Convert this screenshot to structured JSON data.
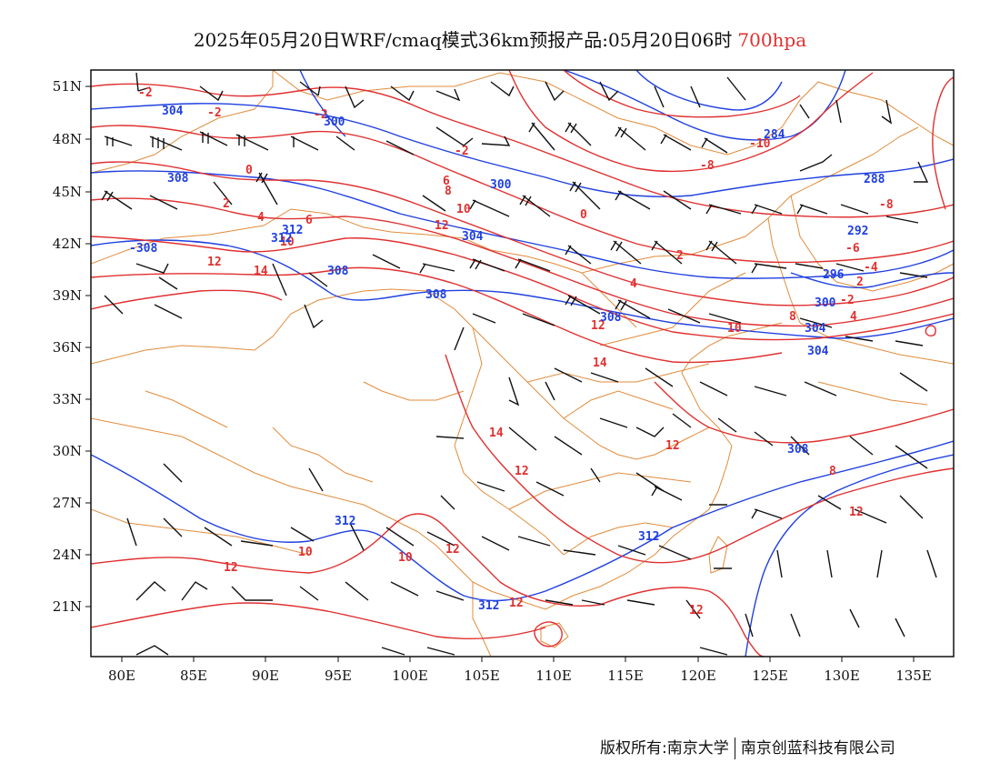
{
  "title": {
    "main": "2025年05月20日WRF/cmaq模式36km预报产品:05月20日06时",
    "level": "700hpa"
  },
  "footer": {
    "left": "版权所有:南京大学",
    "right": "南京创蓝科技有限公司"
  },
  "axes": {
    "lon_labels": [
      "80E",
      "85E",
      "90E",
      "95E",
      "100E",
      "105E",
      "110E",
      "115E",
      "120E",
      "125E",
      "130E",
      "135E"
    ],
    "lat_labels": [
      "51N",
      "48N",
      "45N",
      "42N",
      "39N",
      "36N",
      "33N",
      "30N",
      "27N",
      "24N",
      "21N"
    ]
  },
  "colors": {
    "temperature": "#e03030",
    "height": "#2040e0",
    "boundary": "#e08c3c",
    "wind": "#111111"
  },
  "contour_labels": {
    "temperature": [
      "-2",
      "-2",
      "-2",
      "-2",
      "0",
      "2",
      "4",
      "6",
      "6",
      "8",
      "10",
      "12",
      "12",
      "14",
      "10",
      "12",
      "14",
      "14",
      "12",
      "12",
      "12",
      "10",
      "10",
      "12",
      "12",
      "12",
      "0",
      "2",
      "4",
      "-2",
      "-4",
      "-6",
      "-8",
      "-10",
      "-8",
      "2",
      "4",
      "8",
      "10",
      "12",
      "8"
    ],
    "height": [
      "304",
      "300",
      "308",
      "-308",
      "312",
      "308",
      "308",
      "300",
      "304",
      "308",
      "304",
      "284",
      "288",
      "292",
      "296",
      "300",
      "304",
      "308",
      "312",
      "312",
      "312",
      "312"
    ]
  }
}
